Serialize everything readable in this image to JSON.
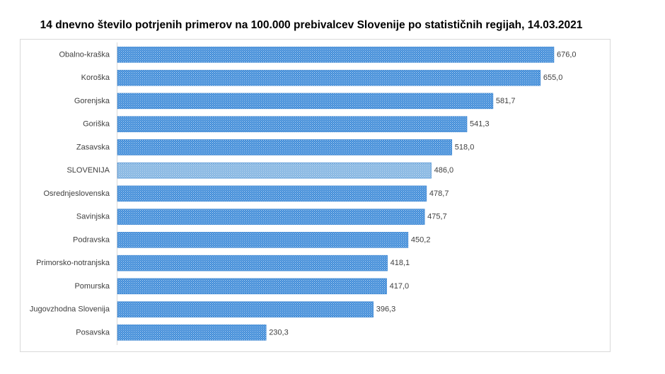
{
  "chart_data": {
    "type": "bar",
    "orientation": "horizontal",
    "title": "14 dnevno število potrjenih primerov na 100.000 prebivalcev Slovenije po statističnih regijah, 14.03.2021",
    "categories": [
      "Obalno-kraška",
      "Koroška",
      "Gorenjska",
      "Goriška",
      "Zasavska",
      "SLOVENIJA",
      "Osrednjeslovenska",
      "Savinjska",
      "Podravska",
      "Primorsko-notranjska",
      "Pomurska",
      "Jugovzhodna Slovenija",
      "Posavska"
    ],
    "values": [
      676.0,
      655.0,
      581.7,
      541.3,
      518.0,
      486.0,
      478.7,
      475.7,
      450.2,
      418.1,
      417.0,
      396.3,
      230.3
    ],
    "value_labels": [
      "676,0",
      "655,0",
      "581,7",
      "541,3",
      "518,0",
      "486,0",
      "478,7",
      "475,7",
      "450,2",
      "418,1",
      "417,0",
      "396,3",
      "230,3"
    ],
    "colors": [
      "#3c8ad8",
      "#3c8ad8",
      "#3c8ad8",
      "#3c8ad8",
      "#3c8ad8",
      "#7fb2e0",
      "#3c8ad8",
      "#3c8ad8",
      "#3c8ad8",
      "#3c8ad8",
      "#3c8ad8",
      "#3c8ad8",
      "#3c8ad8"
    ]
  }
}
